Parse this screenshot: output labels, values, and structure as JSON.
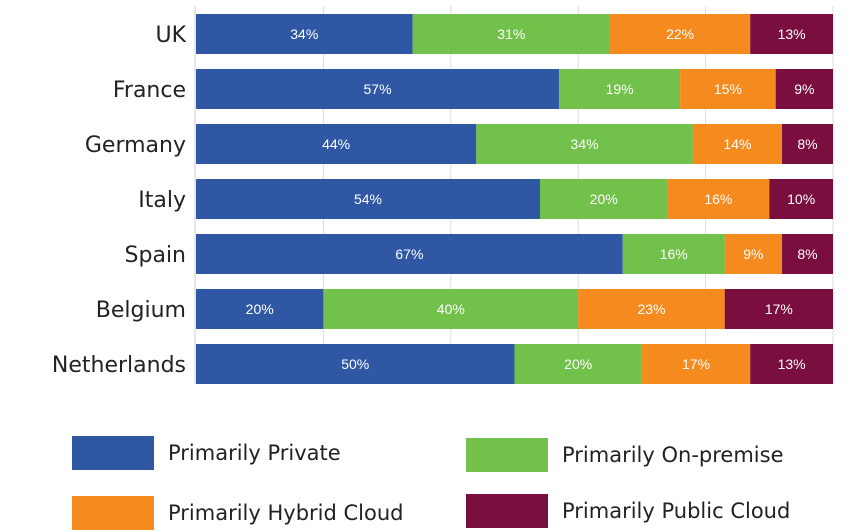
{
  "chart_data": {
    "type": "bar",
    "orientation": "horizontal",
    "stacked": true,
    "categories": [
      "UK",
      "France",
      "Germany",
      "Italy",
      "Spain",
      "Belgium",
      "Netherlands"
    ],
    "series": [
      {
        "name": "Primarily Private",
        "color": "#2f57a4",
        "values": [
          34,
          57,
          44,
          54,
          67,
          20,
          50
        ]
      },
      {
        "name": "Primarily On-premise",
        "color": "#72c14b",
        "values": [
          31,
          19,
          34,
          20,
          16,
          40,
          20
        ]
      },
      {
        "name": "Primarily Hybrid Cloud",
        "color": "#f58a1f",
        "values": [
          22,
          15,
          14,
          16,
          9,
          23,
          17
        ]
      },
      {
        "name": "Primarily Public Cloud",
        "color": "#7a0e3e",
        "values": [
          13,
          9,
          8,
          10,
          8,
          17,
          13
        ]
      }
    ],
    "data_labels": [
      [
        "34%",
        "31%",
        "22%",
        "13%"
      ],
      [
        "57%",
        "19%",
        "15%",
        "9%"
      ],
      [
        "44%",
        "34%",
        "14%",
        "8%"
      ],
      [
        "54%",
        "20%",
        "16%",
        "10%"
      ],
      [
        "67%",
        "16%",
        "9%",
        "8%"
      ],
      [
        "20%",
        "40%",
        "23%",
        "17%"
      ],
      [
        "50%",
        "20%",
        "17%",
        "13%"
      ]
    ],
    "xlim": [
      0,
      100
    ],
    "legend_position": "bottom",
    "legend_order": [
      0,
      1,
      2,
      3
    ]
  }
}
